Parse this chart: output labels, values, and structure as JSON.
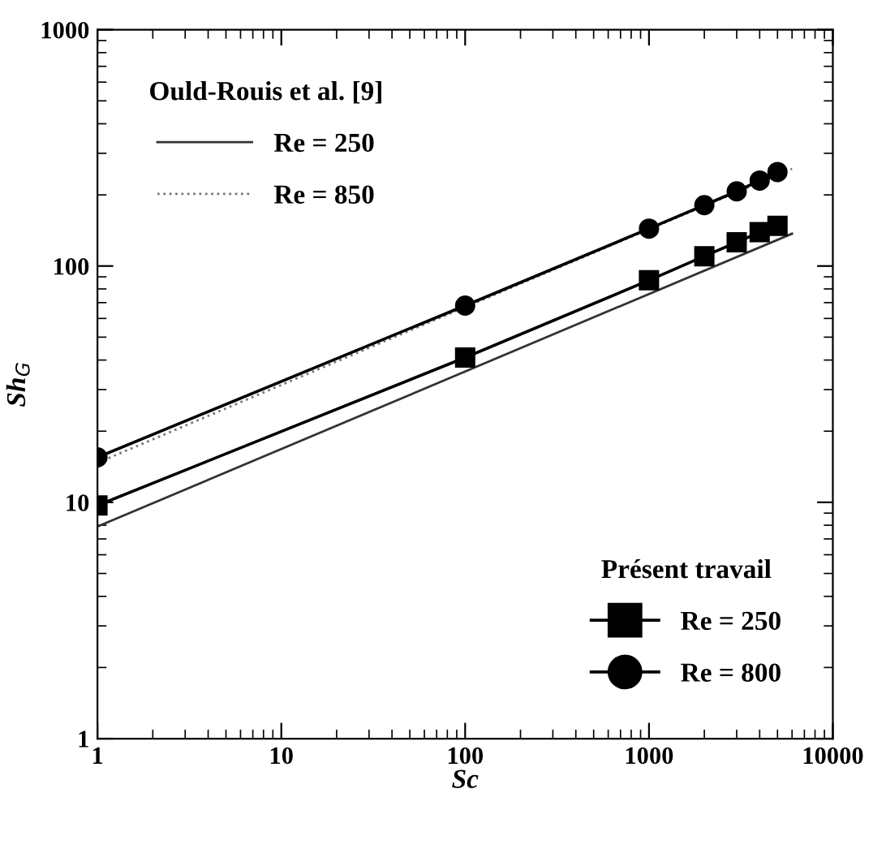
{
  "chart_data": {
    "type": "line",
    "xlabel": "Sc",
    "ylabel": "Sh$_{G}$",
    "log": "xy",
    "xlim": [
      1,
      10000
    ],
    "xticks": [
      1,
      10,
      100,
      1000,
      10000
    ],
    "ylim": [
      1,
      1000
    ],
    "yticks": [
      1,
      10,
      100,
      1000
    ],
    "grid": false,
    "legend": [
      "top left",
      "bottom right"
    ],
    "legend_title": [
      "Ould-Rouis et al. [9]",
      "Présent travail"
    ],
    "series": [
      {
        "name": "Re = 250",
        "color": "#333333",
        "marker": "none",
        "line_style": "solid",
        "x": [
          1,
          6000
        ],
        "values": [
          7.9,
          137
        ]
      },
      {
        "name": "Re = 850",
        "color": "#777777",
        "marker": "none",
        "line_style": "dotted",
        "x": [
          1,
          6000
        ],
        "values": [
          14.7,
          258
        ]
      },
      {
        "name": "Re = 250",
        "color": "#000000",
        "marker": "square",
        "line_style": "solid",
        "x": [
          1,
          100,
          1000,
          2000,
          3000,
          4000,
          5000
        ],
        "values": [
          9.7,
          41,
          87,
          110,
          126,
          139,
          148
        ]
      },
      {
        "name": "Re = 800",
        "color": "#000000",
        "marker": "circle",
        "line_style": "solid",
        "x": [
          1,
          100,
          1000,
          2000,
          3000,
          4000,
          5000
        ],
        "values": [
          15.5,
          68,
          144,
          181,
          207,
          230,
          250
        ]
      }
    ]
  }
}
